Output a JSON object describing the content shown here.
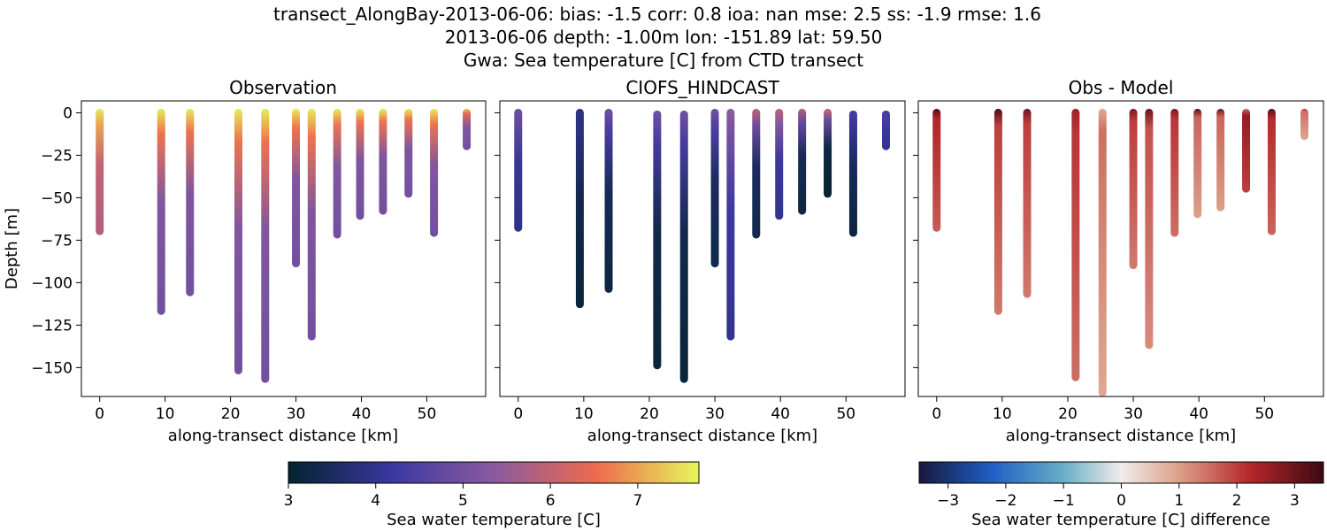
{
  "figure": {
    "title_lines": [
      "transect_AlongBay-2013-06-06: bias: -1.5  corr: 0.8  ioa: nan  mse: 2.5  ss: -1.9  rmse: 1.6",
      "2013-06-06 depth: -1.00m lon: -151.89 lat: 59.50",
      "Gwa: Sea temperature [C] from CTD transect"
    ]
  },
  "chart_data": [
    {
      "type": "scatter",
      "title": "Observation",
      "xlabel": "along-transect distance [km]",
      "ylabel": "Depth [m]",
      "xlim": [
        -2.8,
        59.0
      ],
      "ylim": [
        -167,
        7
      ],
      "xticks": [
        0,
        10,
        20,
        30,
        40,
        50
      ],
      "yticks": [
        0,
        -25,
        -50,
        -75,
        -100,
        -125,
        -150
      ],
      "colormap": "thermal",
      "color_range": [
        3.0,
        7.7
      ],
      "profiles": [
        {
          "x": 0.0,
          "bottom": -72,
          "surface_temp": 7.6,
          "deep_temp": 5.8
        },
        {
          "x": 9.4,
          "bottom": -119,
          "surface_temp": 7.6,
          "deep_temp": 5.0
        },
        {
          "x": 13.8,
          "bottom": -108,
          "surface_temp": 7.6,
          "deep_temp": 5.0
        },
        {
          "x": 21.2,
          "bottom": -154,
          "surface_temp": 7.6,
          "deep_temp": 5.0
        },
        {
          "x": 25.3,
          "bottom": -159,
          "surface_temp": 7.6,
          "deep_temp": 5.0
        },
        {
          "x": 30.0,
          "bottom": -91,
          "surface_temp": 7.6,
          "deep_temp": 5.0
        },
        {
          "x": 32.4,
          "bottom": -134,
          "surface_temp": 7.6,
          "deep_temp": 5.0
        },
        {
          "x": 36.3,
          "bottom": -74,
          "surface_temp": 7.6,
          "deep_temp": 5.0
        },
        {
          "x": 39.8,
          "bottom": -63,
          "surface_temp": 7.6,
          "deep_temp": 5.0
        },
        {
          "x": 43.3,
          "bottom": -60,
          "surface_temp": 7.6,
          "deep_temp": 5.0
        },
        {
          "x": 47.2,
          "bottom": -50,
          "surface_temp": 7.6,
          "deep_temp": 5.0
        },
        {
          "x": 51.1,
          "bottom": -73,
          "surface_temp": 7.6,
          "deep_temp": 5.0
        },
        {
          "x": 56.1,
          "bottom": -22,
          "surface_temp": 7.2,
          "deep_temp": 5.0
        }
      ]
    },
    {
      "type": "scatter",
      "title": "CIOFS_HINDCAST",
      "xlabel": "along-transect distance [km]",
      "xlim": [
        -2.8,
        59.0
      ],
      "ylim": [
        -167,
        7
      ],
      "xticks": [
        0,
        10,
        20,
        30,
        40,
        50
      ],
      "colormap": "thermal",
      "color_range": [
        3.0,
        7.7
      ],
      "profiles": [
        {
          "x": 0.0,
          "top": 0,
          "bottom": -70,
          "surface_temp": 5.0,
          "deep_temp": 3.9
        },
        {
          "x": 9.4,
          "top": 0,
          "bottom": -115,
          "surface_temp": 3.9,
          "deep_temp": 3.1
        },
        {
          "x": 13.8,
          "top": 0,
          "bottom": -106,
          "surface_temp": 5.0,
          "deep_temp": 3.2
        },
        {
          "x": 21.2,
          "top": -1,
          "bottom": -151,
          "surface_temp": 5.0,
          "deep_temp": 3.1
        },
        {
          "x": 25.3,
          "top": -1,
          "bottom": -159,
          "surface_temp": 5.0,
          "deep_temp": 3.1
        },
        {
          "x": 30.0,
          "top": 0,
          "bottom": -91,
          "surface_temp": 5.0,
          "deep_temp": 3.3
        },
        {
          "x": 32.4,
          "top": 0,
          "bottom": -134,
          "surface_temp": 5.4,
          "deep_temp": 4.0
        },
        {
          "x": 36.3,
          "top": 0,
          "bottom": -74,
          "surface_temp": 6.0,
          "deep_temp": 3.3
        },
        {
          "x": 39.8,
          "top": 0,
          "bottom": -63,
          "surface_temp": 6.0,
          "deep_temp": 4.0
        },
        {
          "x": 43.3,
          "top": 0,
          "bottom": -60,
          "surface_temp": 5.8,
          "deep_temp": 3.2
        },
        {
          "x": 47.2,
          "top": 0,
          "bottom": -50,
          "surface_temp": 6.2,
          "deep_temp": 3.0
        },
        {
          "x": 51.1,
          "top": -1,
          "bottom": -73,
          "surface_temp": 4.4,
          "deep_temp": 3.2
        },
        {
          "x": 56.1,
          "top": -1,
          "bottom": -22,
          "surface_temp": 4.2,
          "deep_temp": 4.0
        }
      ]
    },
    {
      "type": "scatter",
      "title": "Obs - Model",
      "xlabel": "along-transect distance [km]",
      "xlim": [
        -2.8,
        59.0
      ],
      "ylim": [
        -167,
        7
      ],
      "xticks": [
        0,
        10,
        20,
        30,
        40,
        50
      ],
      "colormap": "balance",
      "color_range": [
        -3.5,
        3.5
      ],
      "profiles": [
        {
          "x": 0.0,
          "bottom": -70,
          "surface_diff": 3.2,
          "diff": 1.7
        },
        {
          "x": 9.4,
          "bottom": -119,
          "surface_diff": 3.3,
          "diff": 1.4
        },
        {
          "x": 13.8,
          "bottom": -109,
          "surface_diff": 3.0,
          "diff": 1.4
        },
        {
          "x": 21.2,
          "bottom": -158,
          "surface_diff": 2.5,
          "diff": 1.5
        },
        {
          "x": 25.3,
          "bottom": -167,
          "surface_diff": 0.9,
          "diff": 0.9
        },
        {
          "x": 30.0,
          "bottom": -92,
          "surface_diff": 2.8,
          "diff": 1.4
        },
        {
          "x": 32.4,
          "bottom": -139,
          "surface_diff": 3.0,
          "diff": 1.2
        },
        {
          "x": 36.3,
          "bottom": -73,
          "surface_diff": 2.8,
          "diff": 1.5
        },
        {
          "x": 39.8,
          "bottom": -62,
          "surface_diff": 3.2,
          "diff": 1.0
        },
        {
          "x": 43.3,
          "bottom": -58,
          "surface_diff": 3.0,
          "diff": 1.0
        },
        {
          "x": 47.2,
          "bottom": -47,
          "surface_diff": 1.6,
          "diff": 2.0
        },
        {
          "x": 51.1,
          "bottom": -72,
          "surface_diff": 3.2,
          "diff": 1.6
        },
        {
          "x": 56.1,
          "bottom": -16,
          "surface_diff": 2.2,
          "diff": 0.9
        }
      ]
    }
  ],
  "colorbars": [
    {
      "label": "Sea water temperature [C]",
      "range": [
        3.0,
        7.7
      ],
      "ticks": [
        "3",
        "4",
        "5",
        "6",
        "7"
      ],
      "tick_values": [
        3,
        4,
        5,
        6,
        7
      ],
      "colormap": "thermal"
    },
    {
      "label": "Sea water temperature [C] difference",
      "range": [
        -3.5,
        3.5
      ],
      "ticks": [
        "−3",
        "−2",
        "−1",
        "0",
        "1",
        "2",
        "3"
      ],
      "tick_values": [
        -3,
        -2,
        -1,
        0,
        1,
        2,
        3
      ],
      "colormap": "balance"
    }
  ]
}
